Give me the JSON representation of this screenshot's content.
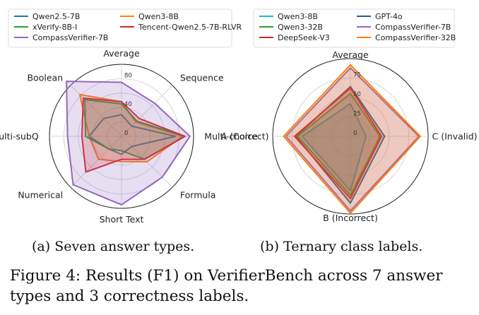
{
  "figure": {
    "subcaption_a": "(a) Seven answer types.",
    "subcaption_b": "(b) Ternary class labels.",
    "caption_line1": "Figure 4: Results (F1) on VerifierBench across 7 answer",
    "caption_line2": "types and 3 correctness labels."
  },
  "chart_data": [
    {
      "type": "radar",
      "axes": [
        "Average",
        "Sequence",
        "Multi-choice",
        "Formula",
        "Short Text",
        "Numerical",
        "Multi-subQ",
        "Boolean"
      ],
      "rlim": [
        0,
        100
      ],
      "radial_ticks": [
        0,
        40,
        80
      ],
      "grid": true,
      "legend_placement": "top",
      "series": [
        {
          "name": "Qwen2.5-7B",
          "color": "#1f77b4",
          "fill": false,
          "values": [
            30,
            20,
            75,
            20,
            25,
            25,
            45,
            35
          ]
        },
        {
          "name": "Qwen3-8B",
          "color": "#ff7f0e",
          "fill": true,
          "values": [
            48,
            28,
            85,
            50,
            35,
            45,
            45,
            82
          ]
        },
        {
          "name": "xVerify-8B-I",
          "color": "#2ca02c",
          "fill": true,
          "values": [
            45,
            30,
            88,
            45,
            20,
            25,
            50,
            72
          ]
        },
        {
          "name": "Tencent-Qwen2.5-7B-RLVR",
          "color": "#d62728",
          "fill": true,
          "values": [
            48,
            35,
            88,
            45,
            32,
            70,
            55,
            75
          ]
        },
        {
          "name": "CompassVerifier-7B",
          "color": "#9467bd",
          "fill": true,
          "values": [
            75,
            65,
            95,
            80,
            95,
            95,
            75,
            108
          ]
        }
      ]
    },
    {
      "type": "radar",
      "axes": [
        "Average",
        "C (Invalid)",
        "B (Incorrect)",
        "A (Correct)"
      ],
      "rlim": [
        0,
        100
      ],
      "radial_ticks": [
        0,
        25,
        50,
        75
      ],
      "grid": true,
      "legend_placement": "top",
      "series": [
        {
          "name": "Qwen3-8B",
          "color": "#17becf",
          "fill": true,
          "values": [
            42,
            20,
            70,
            62
          ]
        },
        {
          "name": "GPT-4o",
          "color": "#1f5f8b",
          "fill": true,
          "values": [
            64,
            44,
            86,
            70
          ]
        },
        {
          "name": "Qwen3-32B",
          "color": "#2ca02c",
          "fill": true,
          "values": [
            55,
            38,
            76,
            68
          ]
        },
        {
          "name": "CompassVerifier-7B",
          "color": "#9467bd",
          "fill": true,
          "values": [
            88,
            88,
            96,
            83
          ]
        },
        {
          "name": "DeepSeek-V3",
          "color": "#d62728",
          "fill": true,
          "values": [
            62,
            40,
            80,
            72
          ]
        },
        {
          "name": "CompassVerifier-32B",
          "color": "#ff7f0e",
          "fill": true,
          "values": [
            92,
            90,
            99,
            86
          ]
        }
      ]
    }
  ]
}
